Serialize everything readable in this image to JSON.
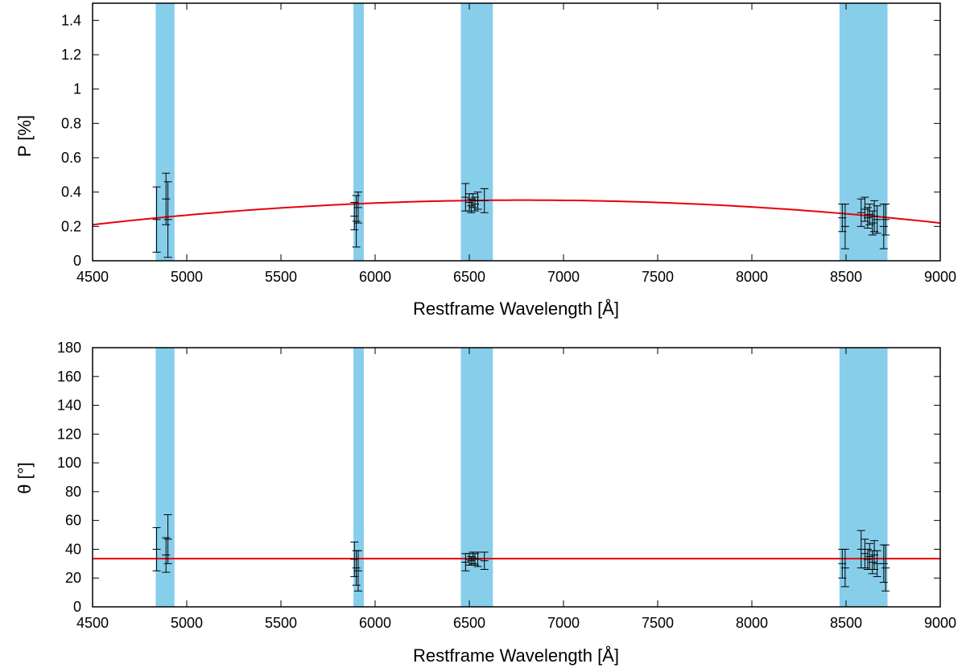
{
  "colors": {
    "band": "#87CEEB",
    "fit": "#e8000b",
    "points": "#000000",
    "axis": "#000000"
  },
  "chart_data": [
    {
      "type": "scatter",
      "xlabel": "Restframe Wavelength [Å]",
      "ylabel": "P [%]",
      "xlim": [
        4500,
        9000
      ],
      "ylim": [
        0,
        1.5
      ],
      "xticks": [
        "4500",
        "5000",
        "5500",
        "6000",
        "6500",
        "7000",
        "7500",
        "8000",
        "8500",
        "9000"
      ],
      "yticks": [
        "0",
        "0.2",
        "0.4",
        "0.6",
        "0.8",
        "1",
        "1.2",
        "1.4"
      ],
      "grid": false,
      "bands": [
        [
          4835,
          4935
        ],
        [
          5885,
          5940
        ],
        [
          6455,
          6625
        ],
        [
          8465,
          8720
        ]
      ],
      "fit": {
        "type": "quadratic",
        "x": [
          4500,
          6450,
          9000
        ],
        "y": [
          0.21,
          0.35,
          0.22
        ]
      },
      "points": [
        {
          "x": 4840,
          "y": 0.24,
          "err": 0.19
        },
        {
          "x": 4890,
          "y": 0.36,
          "err": 0.15
        },
        {
          "x": 4900,
          "y": 0.24,
          "err": 0.22
        },
        {
          "x": 5890,
          "y": 0.26,
          "err": 0.08
        },
        {
          "x": 5900,
          "y": 0.23,
          "err": 0.15
        },
        {
          "x": 5910,
          "y": 0.31,
          "err": 0.09
        },
        {
          "x": 6480,
          "y": 0.37,
          "err": 0.08
        },
        {
          "x": 6500,
          "y": 0.34,
          "err": 0.05
        },
        {
          "x": 6510,
          "y": 0.32,
          "err": 0.04
        },
        {
          "x": 6520,
          "y": 0.35,
          "err": 0.04
        },
        {
          "x": 6530,
          "y": 0.33,
          "err": 0.04
        },
        {
          "x": 6545,
          "y": 0.35,
          "err": 0.05
        },
        {
          "x": 6580,
          "y": 0.35,
          "err": 0.07
        },
        {
          "x": 8480,
          "y": 0.25,
          "err": 0.08
        },
        {
          "x": 8495,
          "y": 0.2,
          "err": 0.13
        },
        {
          "x": 8580,
          "y": 0.28,
          "err": 0.08
        },
        {
          "x": 8600,
          "y": 0.3,
          "err": 0.07
        },
        {
          "x": 8615,
          "y": 0.25,
          "err": 0.06
        },
        {
          "x": 8625,
          "y": 0.27,
          "err": 0.06
        },
        {
          "x": 8640,
          "y": 0.22,
          "err": 0.07
        },
        {
          "x": 8650,
          "y": 0.26,
          "err": 0.09
        },
        {
          "x": 8665,
          "y": 0.24,
          "err": 0.08
        },
        {
          "x": 8700,
          "y": 0.2,
          "err": 0.13
        },
        {
          "x": 8710,
          "y": 0.24,
          "err": 0.09
        }
      ]
    },
    {
      "type": "scatter",
      "xlabel": "Restframe Wavelength [Å]",
      "ylabel": "θ [°]",
      "xlim": [
        4500,
        9000
      ],
      "ylim": [
        0,
        180
      ],
      "xticks": [
        "4500",
        "5000",
        "5500",
        "6000",
        "6500",
        "7000",
        "7500",
        "8000",
        "8500",
        "9000"
      ],
      "yticks": [
        "0",
        "20",
        "40",
        "60",
        "80",
        "100",
        "120",
        "140",
        "160",
        "180"
      ],
      "grid": false,
      "bands": [
        [
          4835,
          4935
        ],
        [
          5885,
          5940
        ],
        [
          6455,
          6625
        ],
        [
          8465,
          8720
        ]
      ],
      "fit": {
        "type": "constant",
        "x": [
          4500,
          9000
        ],
        "y": [
          33.5,
          33.5
        ]
      },
      "points": [
        {
          "x": 4840,
          "y": 40,
          "err": 15
        },
        {
          "x": 4890,
          "y": 36,
          "err": 12
        },
        {
          "x": 4900,
          "y": 47,
          "err": 17
        },
        {
          "x": 5890,
          "y": 33,
          "err": 12
        },
        {
          "x": 5900,
          "y": 27,
          "err": 12
        },
        {
          "x": 5910,
          "y": 25,
          "err": 14
        },
        {
          "x": 6480,
          "y": 31,
          "err": 6
        },
        {
          "x": 6500,
          "y": 33,
          "err": 4
        },
        {
          "x": 6510,
          "y": 32,
          "err": 3
        },
        {
          "x": 6520,
          "y": 34,
          "err": 4
        },
        {
          "x": 6530,
          "y": 33,
          "err": 4
        },
        {
          "x": 6545,
          "y": 33,
          "err": 5
        },
        {
          "x": 6580,
          "y": 32,
          "err": 6
        },
        {
          "x": 8480,
          "y": 30,
          "err": 10
        },
        {
          "x": 8495,
          "y": 27,
          "err": 13
        },
        {
          "x": 8580,
          "y": 40,
          "err": 13
        },
        {
          "x": 8600,
          "y": 37,
          "err": 10
        },
        {
          "x": 8615,
          "y": 33,
          "err": 7
        },
        {
          "x": 8625,
          "y": 35,
          "err": 9
        },
        {
          "x": 8640,
          "y": 31,
          "err": 8
        },
        {
          "x": 8650,
          "y": 36,
          "err": 10
        },
        {
          "x": 8665,
          "y": 30,
          "err": 9
        },
        {
          "x": 8700,
          "y": 30,
          "err": 13
        },
        {
          "x": 8710,
          "y": 27,
          "err": 16
        }
      ]
    }
  ]
}
